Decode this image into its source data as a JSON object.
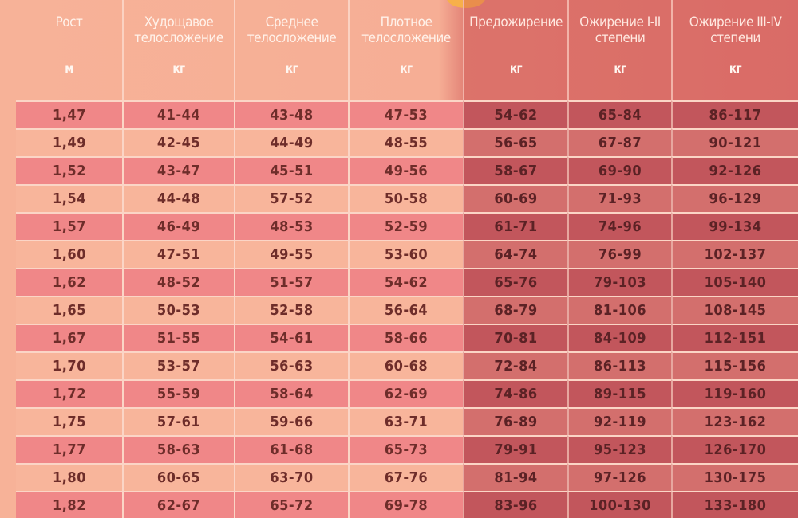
{
  "header": {
    "columns": [
      {
        "label": "Рост",
        "unit": "м"
      },
      {
        "label": "Худощавое телосложение",
        "unit": "кг"
      },
      {
        "label": "Среднее телосложение",
        "unit": "кг"
      },
      {
        "label": "Плотное телосложение",
        "unit": "кг"
      },
      {
        "label": "Предожирение",
        "unit": "кг"
      },
      {
        "label": "Ожирение I-II степени",
        "unit": "кг"
      },
      {
        "label": "Ожирение III-IV степени",
        "unit": "кг"
      }
    ]
  },
  "rows": [
    [
      "1,47",
      "41-44",
      "43-48",
      "47-53",
      "54-62",
      "65-84",
      "86-117"
    ],
    [
      "1,49",
      "42-45",
      "44-49",
      "48-55",
      "56-65",
      "67-87",
      "90-121"
    ],
    [
      "1,52",
      "43-47",
      "45-51",
      "49-56",
      "58-67",
      "69-90",
      "92-126"
    ],
    [
      "1,54",
      "44-48",
      "57-52",
      "50-58",
      "60-69",
      "71-93",
      "96-129"
    ],
    [
      "1,57",
      "46-49",
      "48-53",
      "52-59",
      "61-71",
      "74-96",
      "99-134"
    ],
    [
      "1,60",
      "47-51",
      "49-55",
      "53-60",
      "64-74",
      "76-99",
      "102-137"
    ],
    [
      "1,62",
      "48-52",
      "51-57",
      "54-62",
      "65-76",
      "79-103",
      "105-140"
    ],
    [
      "1,65",
      "50-53",
      "52-58",
      "56-64",
      "68-79",
      "81-106",
      "108-145"
    ],
    [
      "1,67",
      "51-55",
      "54-61",
      "58-66",
      "70-81",
      "84-109",
      "112-151"
    ],
    [
      "1,70",
      "53-57",
      "56-63",
      "60-68",
      "72-84",
      "86-113",
      "115-156"
    ],
    [
      "1,72",
      "55-59",
      "58-64",
      "62-69",
      "74-86",
      "89-115",
      "119-160"
    ],
    [
      "1,75",
      "57-61",
      "59-66",
      "63-71",
      "76-89",
      "92-119",
      "123-162"
    ],
    [
      "1,77",
      "58-63",
      "61-68",
      "65-73",
      "79-91",
      "95-123",
      "126-170"
    ],
    [
      "1,80",
      "60-65",
      "63-70",
      "67-76",
      "81-94",
      "97-126",
      "130-175"
    ],
    [
      "1,82",
      "62-67",
      "65-72",
      "69-78",
      "83-96",
      "100-130",
      "133-180"
    ]
  ],
  "colors": {
    "light_bg": "#f8b59b",
    "pink_bg": "#f08788",
    "dark_bg": "#c2565c",
    "text": "#6e2d2a"
  }
}
